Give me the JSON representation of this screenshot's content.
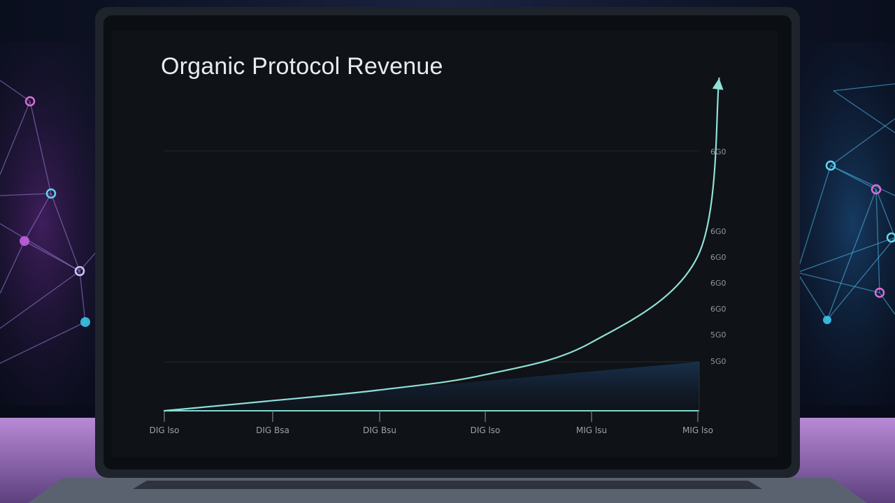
{
  "chart_data": {
    "type": "line",
    "title": "Organic Protocol Revenue",
    "xlabel": "",
    "ylabel": "",
    "x_ticks": [
      "DIG lso",
      "DIG Bsa",
      "DIG Bsu",
      "DIG lso",
      "MIG lsu",
      "MIG lso"
    ],
    "y_ticks": [
      "6G0",
      "6G0",
      "6G0",
      "6G0",
      "6G0",
      "5G0",
      "5G0"
    ],
    "series": [
      {
        "values": [
          0,
          30,
          62,
          108,
          205,
          465,
          1000
        ]
      }
    ],
    "x": [
      0,
      1,
      2,
      3,
      4,
      5,
      5.2
    ],
    "ylim": [
      0,
      1000
    ],
    "grid": true,
    "line_color": "#8fe0d8",
    "arrow_at_end": true
  }
}
